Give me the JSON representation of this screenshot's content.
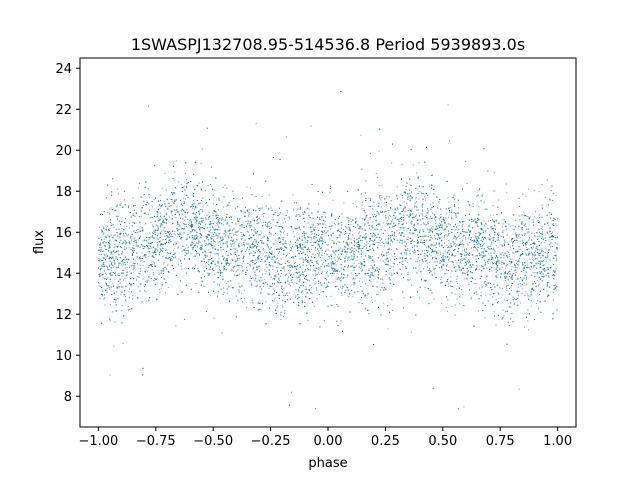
{
  "chart_data": {
    "type": "scatter",
    "title": "1SWASPJ132708.95-514536.8 Period 5939893.0s",
    "xlabel": "phase",
    "ylabel": "flux",
    "xlim": [
      -1.08,
      1.08
    ],
    "ylim": [
      6.5,
      24.5
    ],
    "xticks": [
      -1.0,
      -0.75,
      -0.5,
      -0.25,
      0.0,
      0.25,
      0.5,
      0.75,
      1.0
    ],
    "xtick_labels": [
      "−1.00",
      "−0.75",
      "−0.50",
      "−0.25",
      "0.00",
      "0.25",
      "0.50",
      "0.75",
      "1.00"
    ],
    "yticks": [
      8,
      10,
      12,
      14,
      16,
      18,
      20,
      22,
      24
    ],
    "ytick_labels": [
      "8",
      "10",
      "12",
      "14",
      "16",
      "18",
      "20",
      "22",
      "24"
    ],
    "grid": false,
    "legend": "none",
    "marker_color": "#1f77b4",
    "series": [
      {
        "phase_range": [
          -1.0,
          1.0
        ],
        "flux_profile": {
          "phase": [
            0.0,
            0.05,
            0.1,
            0.15,
            0.2,
            0.25,
            0.3,
            0.35,
            0.4,
            0.45,
            0.5,
            0.55,
            0.6,
            0.65,
            0.7,
            0.75,
            0.8,
            0.85,
            0.9,
            0.95,
            1.0
          ],
          "mean_flux": [
            15.0,
            14.7,
            14.9,
            15.0,
            15.3,
            15.5,
            16.0,
            16.4,
            16.2,
            15.9,
            15.6,
            15.2,
            15.0,
            15.5,
            14.8,
            14.9,
            14.3,
            14.6,
            14.8,
            15.0,
            15.0
          ]
        },
        "flux_spread": 1.3,
        "flux_extremes": [
          7.2,
          23.3
        ]
      }
    ]
  }
}
